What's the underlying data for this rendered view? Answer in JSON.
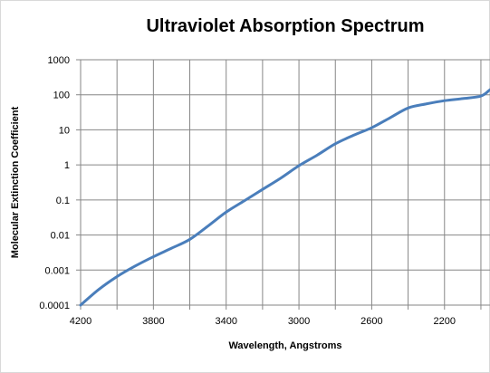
{
  "chart_data": {
    "type": "line",
    "title": "Ultraviolet Absorption Spectrum",
    "xlabel": "Wavelength, Angstroms",
    "ylabel": "Molecular Extinction Coefficient",
    "x_ticks": [
      "4200",
      "3800",
      "3400",
      "3000",
      "2600",
      "2200"
    ],
    "y_ticks": [
      "0.0001",
      "0.001",
      "0.01",
      "0.1",
      "1",
      "10",
      "100",
      "1000"
    ],
    "xlim": [
      4200,
      1950
    ],
    "ylim": [
      0.0001,
      1000
    ],
    "y_scale": "log",
    "x_reversed": true,
    "grid": true,
    "legend": false,
    "series": [
      {
        "color": "#4a7ebb",
        "x": [
          4200,
          4100,
          4000,
          3900,
          3800,
          3700,
          3600,
          3500,
          3400,
          3300,
          3200,
          3100,
          3000,
          2900,
          2800,
          2700,
          2600,
          2500,
          2400,
          2300,
          2200,
          2100,
          2000,
          1950
        ],
        "y": [
          0.0001,
          0.00028,
          0.00065,
          0.0013,
          0.0024,
          0.0042,
          0.0075,
          0.018,
          0.045,
          0.095,
          0.2,
          0.42,
          0.95,
          1.9,
          4.0,
          7.0,
          11.5,
          22,
          42,
          55,
          68,
          78,
          92,
          140
        ]
      }
    ]
  }
}
